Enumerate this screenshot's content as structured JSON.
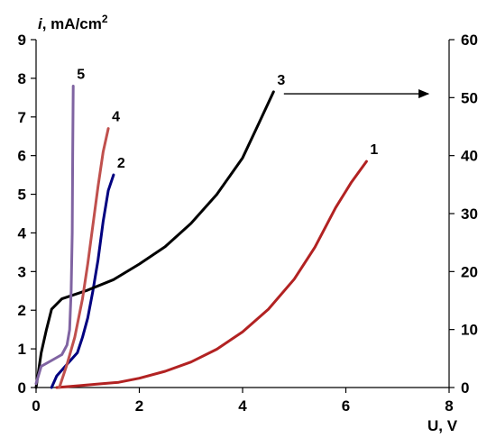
{
  "chart_data": {
    "type": "line",
    "ylabel_italic": "i",
    "ylabel_rest": ", mA/cm",
    "ylabel_sup": "2",
    "xlabel": "U, V",
    "xlim": [
      0,
      8
    ],
    "ylim_left": [
      0,
      9
    ],
    "ylim_right": [
      0,
      60
    ],
    "x_ticks": [
      "0",
      "2",
      "4",
      "6",
      "8"
    ],
    "y_left_ticks": [
      "0",
      "1",
      "2",
      "3",
      "4",
      "5",
      "6",
      "7",
      "8",
      "9"
    ],
    "y_right_ticks": [
      "0",
      "10",
      "20",
      "30",
      "40",
      "50",
      "60"
    ],
    "grid": false,
    "arrow_annotation": {
      "from": [
        4.8,
        7.6
      ],
      "to": [
        7.6,
        7.6
      ]
    },
    "series": [
      {
        "name": "1",
        "axis": "right",
        "color": "#b22222",
        "points": [
          [
            0.4,
            0
          ],
          [
            0.8,
            0.3
          ],
          [
            1.2,
            0.6
          ],
          [
            1.6,
            0.9
          ],
          [
            2.0,
            1.6
          ],
          [
            2.5,
            2.8
          ],
          [
            3.0,
            4.4
          ],
          [
            3.5,
            6.6
          ],
          [
            4.0,
            9.6
          ],
          [
            4.5,
            13.5
          ],
          [
            5.0,
            18.7
          ],
          [
            5.4,
            24.2
          ],
          [
            5.8,
            31.0
          ],
          [
            6.1,
            35.3
          ],
          [
            6.4,
            39.0
          ]
        ]
      },
      {
        "name": "2",
        "axis": "left",
        "color": "#000080",
        "points": [
          [
            0.3,
            0
          ],
          [
            0.4,
            0.3
          ],
          [
            0.6,
            0.6
          ],
          [
            0.8,
            0.9
          ],
          [
            0.9,
            1.3
          ],
          [
            1.0,
            1.8
          ],
          [
            1.1,
            2.5
          ],
          [
            1.2,
            3.3
          ],
          [
            1.3,
            4.3
          ],
          [
            1.4,
            5.1
          ],
          [
            1.5,
            5.5
          ]
        ]
      },
      {
        "name": "3",
        "axis": "right",
        "color": "#000000",
        "points": [
          [
            0.0,
            0
          ],
          [
            0.05,
            3
          ],
          [
            0.1,
            6
          ],
          [
            0.2,
            10
          ],
          [
            0.3,
            13.5
          ],
          [
            0.5,
            15.3
          ],
          [
            1.0,
            16.8
          ],
          [
            1.5,
            18.6
          ],
          [
            2.0,
            21.3
          ],
          [
            2.5,
            24.3
          ],
          [
            3.0,
            28.3
          ],
          [
            3.5,
            33.3
          ],
          [
            4.0,
            39.6
          ],
          [
            4.3,
            45.3
          ],
          [
            4.6,
            51.0
          ]
        ]
      },
      {
        "name": "4",
        "axis": "left",
        "color": "#c0504d",
        "points": [
          [
            0.45,
            0
          ],
          [
            0.6,
            0.6
          ],
          [
            0.75,
            1.3
          ],
          [
            0.9,
            2.3
          ],
          [
            1.0,
            3.2
          ],
          [
            1.1,
            4.2
          ],
          [
            1.2,
            5.2
          ],
          [
            1.3,
            6.1
          ],
          [
            1.4,
            6.7
          ]
        ]
      },
      {
        "name": "5",
        "axis": "left",
        "color": "#8064a2",
        "points": [
          [
            0.0,
            0.1
          ],
          [
            0.1,
            0.55
          ],
          [
            0.3,
            0.7
          ],
          [
            0.5,
            0.85
          ],
          [
            0.6,
            1.1
          ],
          [
            0.65,
            1.5
          ],
          [
            0.68,
            2.5
          ],
          [
            0.7,
            4.0
          ],
          [
            0.71,
            6.0
          ],
          [
            0.72,
            7.8
          ]
        ]
      }
    ]
  }
}
